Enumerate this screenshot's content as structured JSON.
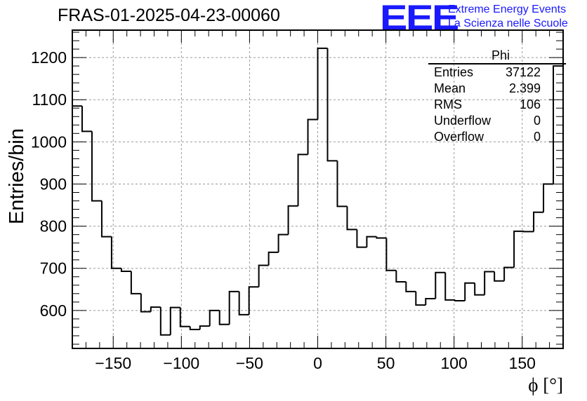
{
  "title": "FRAS-01-2025-04-23-00060",
  "logo": {
    "mark": "EEE",
    "line1": "Extreme Energy Events",
    "line2": "La Scienza nelle Scuole",
    "color": "#1a1aff"
  },
  "stats": {
    "name": "Phi",
    "rows": [
      {
        "key": "Entries",
        "value": "37122"
      },
      {
        "key": "Mean",
        "value": "2.399"
      },
      {
        "key": "RMS",
        "value": "106"
      },
      {
        "key": "Underflow",
        "value": "0"
      },
      {
        "key": "Overflow",
        "value": "0"
      }
    ]
  },
  "chart_data": {
    "type": "histogram",
    "title": "FRAS-01-2025-04-23-00060",
    "xlabel": "ϕ [°]",
    "ylabel": "Entries/bin",
    "xlim": [
      -180,
      180
    ],
    "ylim": [
      510,
      1265
    ],
    "bin_width": 6.923,
    "bin_start": -180,
    "grid": true,
    "legend_position": "top-right",
    "x_ticks": [
      -150,
      -100,
      -50,
      0,
      50,
      100,
      150
    ],
    "x_tick_labels": [
      "−150",
      "−100",
      "−50",
      "0",
      "50",
      "100",
      "150"
    ],
    "y_ticks": [
      600,
      700,
      800,
      900,
      1000,
      1100,
      1200
    ],
    "y_tick_labels": [
      "600",
      "700",
      "800",
      "900",
      "1000",
      "1100",
      "1200"
    ],
    "values": [
      1085,
      1025,
      860,
      775,
      700,
      693,
      640,
      597,
      608,
      542,
      607,
      562,
      555,
      563,
      600,
      567,
      645,
      590,
      656,
      707,
      738,
      780,
      848,
      970,
      1053,
      1222,
      955,
      847,
      792,
      750,
      775,
      772,
      695,
      668,
      645,
      613,
      628,
      690,
      625,
      623,
      665,
      637,
      692,
      670,
      702,
      788,
      787,
      833,
      900,
      1180
    ],
    "line_color": "#000000"
  }
}
